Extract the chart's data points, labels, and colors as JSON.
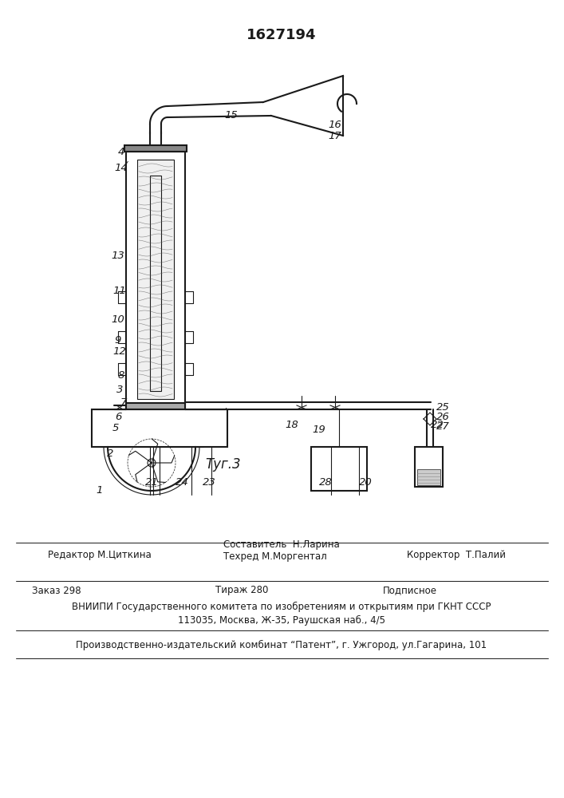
{
  "patent_number": "1627194",
  "figure_label": "Τуг.3",
  "background_color": "#ffffff",
  "line_color": "#1a1a1a",
  "title_fontsize": 13,
  "label_fontsize": 9.5,
  "footer_text_1": "Редактор М.Циткина",
  "footer_text_2": "Составитель  Н.Ларина\nТехред М.Моргентал",
  "footer_text_3": "Корректор  Т.Палий",
  "footer_text_4": "Заказ 298",
  "footer_text_5": "Тираж 280",
  "footer_text_6": "Подписное",
  "footer_text_7": "ВНИИПИ Государственного комитета по изобретениям и открытиям при ГКНТ СССР",
  "footer_text_8": "113035, Москва, Ж-35, Раушская наб., 4/5",
  "footer_text_9": "Производственно-издательский комбинат “Патент”, г. Ужгород, ул.Гагарина, 101"
}
